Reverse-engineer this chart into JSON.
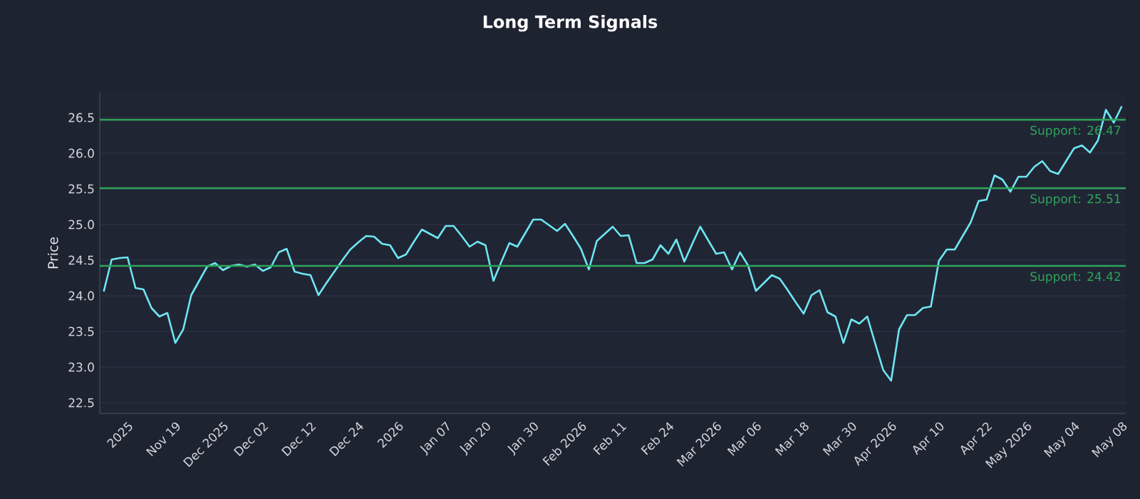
{
  "chart_data": {
    "type": "line",
    "title": "Long Term Signals",
    "ylabel": "Price",
    "categories": [
      null,
      null,
      null,
      "2025",
      null,
      null,
      null,
      null,
      null,
      "Nov 19",
      null,
      null,
      null,
      null,
      null,
      "Dec 2025",
      null,
      null,
      null,
      null,
      "Dec 02",
      null,
      null,
      null,
      null,
      null,
      "Dec 12",
      null,
      null,
      null,
      null,
      null,
      "Dec 24",
      null,
      null,
      null,
      null,
      "2026",
      null,
      null,
      null,
      null,
      null,
      "Jan 07",
      null,
      null,
      null,
      null,
      "Jan 20",
      null,
      null,
      null,
      null,
      null,
      "Jan 30",
      null,
      null,
      null,
      null,
      null,
      "Feb 2026",
      null,
      null,
      null,
      null,
      "Feb 11",
      null,
      null,
      null,
      null,
      null,
      "Feb 24",
      null,
      null,
      null,
      null,
      null,
      "Mar 2026",
      null,
      null,
      null,
      null,
      "Mar 06",
      null,
      null,
      null,
      null,
      null,
      "Mar 18",
      null,
      null,
      null,
      null,
      null,
      "Mar 30",
      null,
      null,
      null,
      null,
      "Apr 2026",
      null,
      null,
      null,
      null,
      null,
      "Apr 10",
      null,
      null,
      null,
      null,
      null,
      "Apr 22",
      null,
      null,
      null,
      null,
      "May 2026",
      null,
      null,
      null,
      null,
      null,
      "May 04",
      null,
      null,
      null,
      null,
      null,
      "May 08"
    ],
    "series": [
      {
        "color": "#6ee6f2",
        "values": [
          24.06,
          24.51,
          24.53,
          24.54,
          24.11,
          24.09,
          23.83,
          23.71,
          23.76,
          23.34,
          23.53,
          24.01,
          24.21,
          24.41,
          24.46,
          24.36,
          24.42,
          24.44,
          24.41,
          24.44,
          24.35,
          24.4,
          24.61,
          24.66,
          24.34,
          24.31,
          24.29,
          24.01,
          24.18,
          24.34,
          24.5,
          24.65,
          24.75,
          24.84,
          24.83,
          24.73,
          24.71,
          24.53,
          24.58,
          24.76,
          24.93,
          24.87,
          24.81,
          24.98,
          24.98,
          24.84,
          24.69,
          24.76,
          24.71,
          24.21,
          24.48,
          24.74,
          24.69,
          24.88,
          25.07,
          25.07,
          24.99,
          24.91,
          25.01,
          24.84,
          24.66,
          24.37,
          24.77,
          24.87,
          24.97,
          24.84,
          24.85,
          24.46,
          24.46,
          24.51,
          24.71,
          24.59,
          24.79,
          24.48,
          24.73,
          24.97,
          24.78,
          24.59,
          24.61,
          24.37,
          24.61,
          24.43,
          24.07,
          24.18,
          24.29,
          24.24,
          24.08,
          23.91,
          23.75,
          24.01,
          24.08,
          23.77,
          23.71,
          23.34,
          23.67,
          23.61,
          23.71,
          23.33,
          22.96,
          22.81,
          23.53,
          23.73,
          23.73,
          23.83,
          23.85,
          24.49,
          24.65,
          24.65,
          24.84,
          25.03,
          25.33,
          25.35,
          25.69,
          25.63,
          25.46,
          25.67,
          25.67,
          25.81,
          25.89,
          25.75,
          25.71,
          25.89,
          26.07,
          26.11,
          26.01,
          26.18,
          26.61,
          26.43,
          26.66
        ]
      }
    ],
    "ylim": [
      22.35,
      26.85
    ],
    "yticks": [
      {
        "value": 22.5,
        "label": "22.5"
      },
      {
        "value": 23,
        "label": "23.0"
      },
      {
        "value": 23.5,
        "label": "23.5"
      },
      {
        "value": 24,
        "label": "24.0"
      },
      {
        "value": 24.5,
        "label": "24.5"
      },
      {
        "value": 25,
        "label": "25.0"
      },
      {
        "value": 25.5,
        "label": "25.5"
      },
      {
        "value": 26,
        "label": "26.0"
      },
      {
        "value": 26.5,
        "label": "26.5"
      }
    ],
    "grid": "y",
    "line_style": "solid",
    "ref_lines": [
      {
        "axis": "y",
        "value": 26.47,
        "label": "Support: 26.47",
        "color": "#2ea55a"
      },
      {
        "axis": "y",
        "value": 25.51,
        "label": "Support: 25.51",
        "color": "#2ea55a"
      },
      {
        "axis": "y",
        "value": 24.42,
        "label": "Support: 24.42",
        "color": "#2ea55a"
      }
    ]
  }
}
